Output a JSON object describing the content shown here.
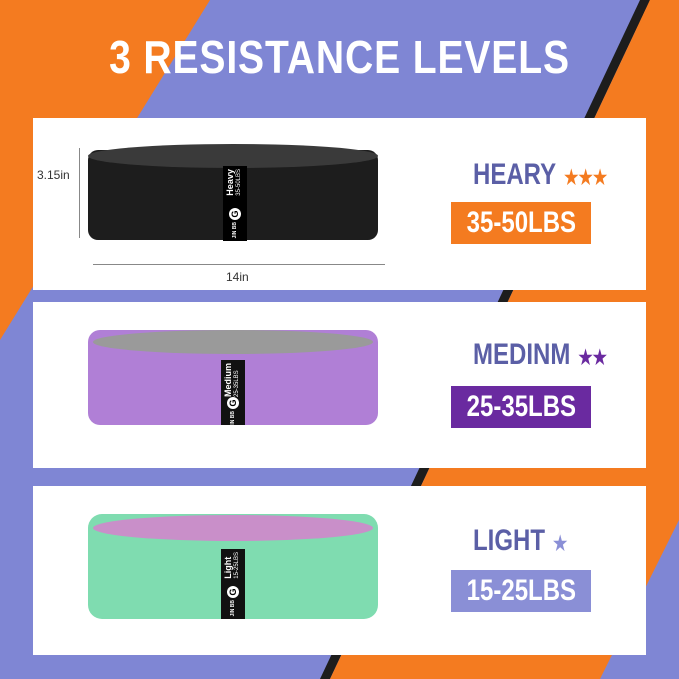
{
  "title": "3 RESISTANCE LEVELS",
  "colors": {
    "orange": "#f47b20",
    "periwinkle": "#7f86d4",
    "purple": "#6a2aa0",
    "light_purple": "#8a8fd6",
    "text": "#5b5fa6"
  },
  "dimensions": {
    "height": "3.15in",
    "width": "14in"
  },
  "brand": "JIN BB",
  "levels": [
    {
      "name": "HEARY",
      "stars": "★★★",
      "badge": "35-50LBS",
      "band_label": "Heavy",
      "band_range": "35-50LBS",
      "band_color": "#1d1d1d",
      "rim_color": "#3a3a3a",
      "star_color": "#f47b20",
      "badge_color": "#f47b20"
    },
    {
      "name": "MEDINM",
      "stars": "★★",
      "badge": "25-35LBS",
      "band_label": "Medium",
      "band_range": "25-35LBS",
      "band_color": "#b07fd6",
      "rim_color": "#9a9a9a",
      "star_color": "#6a2aa0",
      "badge_color": "#6a2aa0"
    },
    {
      "name": "LIGHT",
      "stars": "★",
      "badge": "15-25LBS",
      "band_label": "Light",
      "band_range": "15-25LBS",
      "band_color": "#7fdcb0",
      "rim_color": "#c98fc9",
      "star_color": "#8a8fd6",
      "badge_color": "#8a8fd6"
    }
  ]
}
